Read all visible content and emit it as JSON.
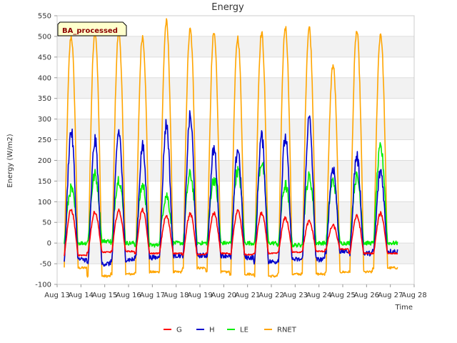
{
  "chart_data": {
    "type": "line",
    "title": "Energy",
    "xlabel": "Time",
    "ylabel": "Energy (W/m2)",
    "badge": "BA_processed",
    "x_ticks": [
      "Aug 13",
      "Aug 14",
      "Aug 15",
      "Aug 16",
      "Aug 17",
      "Aug 18",
      "Aug 19",
      "Aug 20",
      "Aug 21",
      "Aug 22",
      "Aug 23",
      "Aug 24",
      "Aug 25",
      "Aug 26",
      "Aug 27",
      "Aug 28"
    ],
    "y_ticks": [
      -100,
      -50,
      0,
      50,
      100,
      150,
      200,
      250,
      300,
      350,
      400,
      450,
      500,
      550
    ],
    "ylim": [
      -100,
      550
    ],
    "xlim_days": [
      13,
      28
    ],
    "grid": true,
    "banded_background": true,
    "legend_position": "bottom",
    "series": [
      {
        "name": "G",
        "color": "#ff0000",
        "peaks": [
          80,
          75,
          78,
          80,
          65,
          70,
          72,
          78,
          72,
          60,
          52,
          42,
          65,
          72
        ],
        "night": [
          -30,
          -22,
          -20,
          -25,
          -25,
          -28,
          -25,
          -28,
          -25,
          -22,
          -20,
          -15,
          -25,
          -25
        ]
      },
      {
        "name": "H",
        "color": "#0000cc",
        "peaks": [
          270,
          248,
          270,
          232,
          288,
          305,
          228,
          228,
          258,
          255,
          300,
          183,
          210,
          175
        ],
        "night": [
          -40,
          -50,
          -40,
          -35,
          -30,
          -30,
          -30,
          -35,
          -45,
          -40,
          -40,
          -20,
          -25,
          -20
        ]
      },
      {
        "name": "LE",
        "color": "#00ee00",
        "peaks": [
          130,
          165,
          155,
          140,
          115,
          165,
          155,
          175,
          195,
          140,
          160,
          150,
          160,
          230
        ],
        "night": [
          0,
          5,
          0,
          -5,
          0,
          0,
          0,
          0,
          0,
          -5,
          0,
          0,
          0,
          0
        ]
      },
      {
        "name": "RNET",
        "color": "#ffa500",
        "peaks": [
          500,
          515,
          510,
          500,
          535,
          515,
          507,
          497,
          508,
          522,
          522,
          430,
          512,
          507
        ],
        "night": [
          -60,
          -80,
          -75,
          -70,
          -70,
          -60,
          -70,
          -75,
          -80,
          -75,
          -75,
          -70,
          -70,
          -60
        ]
      }
    ]
  }
}
